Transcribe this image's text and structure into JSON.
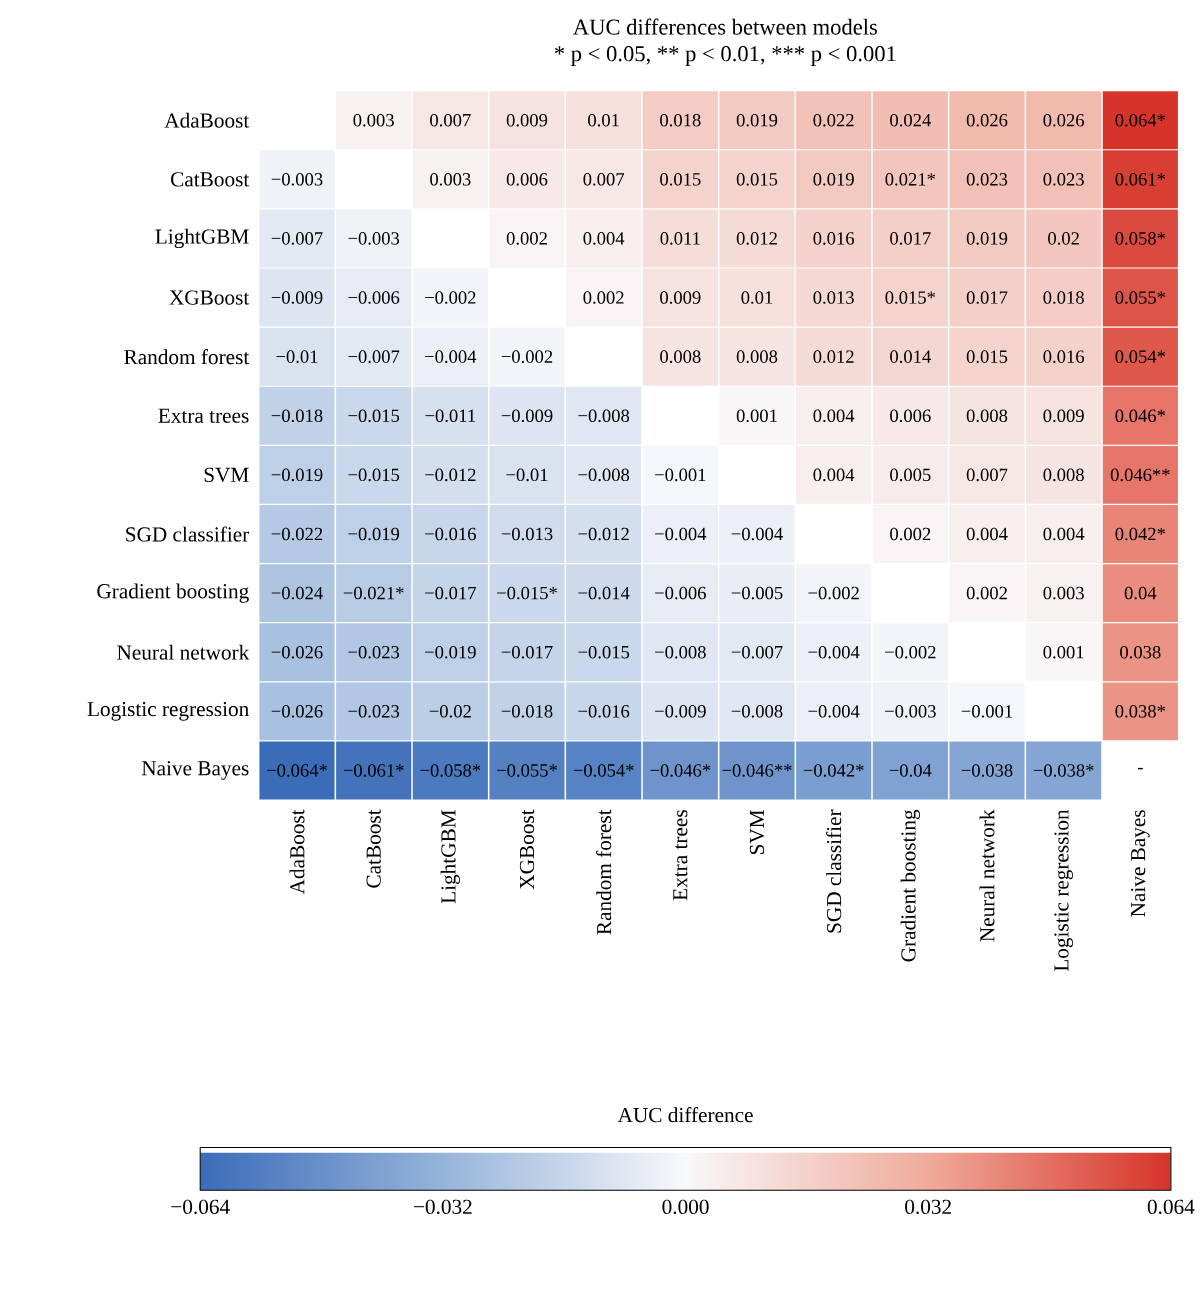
{
  "chart_data": {
    "type": "heatmap",
    "title": "AUC differences between models",
    "subtitle": "* p < 0.05, ** p < 0.01, *** p < 0.001",
    "clabel": "AUC difference",
    "categories": [
      "AdaBoost",
      "CatBoost",
      "LightGBM",
      "XGBoost",
      "Random forest",
      "Extra trees",
      "SVM",
      "SGD classifier",
      "Gradient boosting",
      "Neural network",
      "Logistic regression",
      "Naive Bayes"
    ],
    "y_categories": [
      "AdaBoost",
      "CatBoost",
      "LightGBM",
      "XGBoost",
      "Random forest",
      "Extra trees",
      "SVM",
      "SGD classifier",
      "Gradient boosting",
      "Neural network",
      "Logistic regression",
      "Naive Bayes"
    ],
    "cells": [
      [
        null,
        0.003,
        0.007,
        0.009,
        0.01,
        0.018,
        0.019,
        0.022,
        0.024,
        0.026,
        0.026,
        0.064
      ],
      [
        -0.003,
        null,
        0.003,
        0.006,
        0.007,
        0.015,
        0.015,
        0.019,
        0.021,
        0.023,
        0.023,
        0.061
      ],
      [
        -0.007,
        -0.003,
        null,
        0.002,
        0.004,
        0.011,
        0.012,
        0.016,
        0.017,
        0.019,
        0.02,
        0.058
      ],
      [
        -0.009,
        -0.006,
        -0.002,
        null,
        0.002,
        0.009,
        0.01,
        0.013,
        0.015,
        0.017,
        0.018,
        0.055
      ],
      [
        -0.01,
        -0.007,
        -0.004,
        -0.002,
        null,
        0.008,
        0.008,
        0.012,
        0.014,
        0.015,
        0.016,
        0.054
      ],
      [
        -0.018,
        -0.015,
        -0.011,
        -0.009,
        -0.008,
        null,
        0.001,
        0.004,
        0.006,
        0.008,
        0.009,
        0.046
      ],
      [
        -0.019,
        -0.015,
        -0.012,
        -0.01,
        -0.008,
        -0.001,
        null,
        0.004,
        0.005,
        0.007,
        0.008,
        0.046
      ],
      [
        -0.022,
        -0.019,
        -0.016,
        -0.013,
        -0.012,
        -0.004,
        -0.004,
        null,
        0.002,
        0.004,
        0.004,
        0.042
      ],
      [
        -0.024,
        -0.021,
        -0.017,
        -0.015,
        -0.014,
        -0.006,
        -0.005,
        -0.002,
        null,
        0.002,
        0.003,
        0.04
      ],
      [
        -0.026,
        -0.023,
        -0.019,
        -0.017,
        -0.015,
        -0.008,
        -0.007,
        -0.004,
        -0.002,
        null,
        0.001,
        0.038
      ],
      [
        -0.026,
        -0.023,
        -0.02,
        -0.018,
        -0.016,
        -0.009,
        -0.008,
        -0.004,
        -0.003,
        -0.001,
        null,
        0.038
      ],
      [
        -0.064,
        -0.061,
        -0.058,
        -0.055,
        -0.054,
        -0.046,
        -0.046,
        -0.042,
        -0.04,
        -0.038,
        -0.038,
        null
      ]
    ],
    "cell_labels": [
      [
        null,
        "0.003",
        "0.007",
        "0.009",
        "0.01",
        "0.018",
        "0.019",
        "0.022",
        "0.024",
        "0.026",
        "0.026",
        "0.064*"
      ],
      [
        "−0.003",
        null,
        "0.003",
        "0.006",
        "0.007",
        "0.015",
        "0.015",
        "0.019",
        "0.021*",
        "0.023",
        "0.023",
        "0.061*"
      ],
      [
        "−0.007",
        "−0.003",
        null,
        "0.002",
        "0.004",
        "0.011",
        "0.012",
        "0.016",
        "0.017",
        "0.019",
        "0.02",
        "0.058*"
      ],
      [
        "−0.009",
        "−0.006",
        "−0.002",
        null,
        "0.002",
        "0.009",
        "0.01",
        "0.013",
        "0.015*",
        "0.017",
        "0.018",
        "0.055*"
      ],
      [
        "−0.01",
        "−0.007",
        "−0.004",
        "−0.002",
        null,
        "0.008",
        "0.008",
        "0.012",
        "0.014",
        "0.015",
        "0.016",
        "0.054*"
      ],
      [
        "−0.018",
        "−0.015",
        "−0.011",
        "−0.009",
        "−0.008",
        null,
        "0.001",
        "0.004",
        "0.006",
        "0.008",
        "0.009",
        "0.046*"
      ],
      [
        "−0.019",
        "−0.015",
        "−0.012",
        "−0.01",
        "−0.008",
        "−0.001",
        null,
        "0.004",
        "0.005",
        "0.007",
        "0.008",
        "0.046**"
      ],
      [
        "−0.022",
        "−0.019",
        "−0.016",
        "−0.013",
        "−0.012",
        "−0.004",
        "−0.004",
        null,
        "0.002",
        "0.004",
        "0.004",
        "0.042*"
      ],
      [
        "−0.024",
        "−0.021*",
        "−0.017",
        "−0.015*",
        "−0.014",
        "−0.006",
        "−0.005",
        "−0.002",
        null,
        "0.002",
        "0.003",
        "0.04"
      ],
      [
        "−0.026",
        "−0.023",
        "−0.019",
        "−0.017",
        "−0.015",
        "−0.008",
        "−0.007",
        "−0.004",
        "−0.002",
        null,
        "0.001",
        "0.038"
      ],
      [
        "−0.026",
        "−0.023",
        "−0.02",
        "−0.018",
        "−0.016",
        "−0.009",
        "−0.008",
        "−0.004",
        "−0.003",
        "−0.001",
        null,
        "0.038*"
      ],
      [
        "−0.064*",
        "−0.061*",
        "−0.058*",
        "−0.055*",
        "−0.054*",
        "−0.046*",
        "−0.046**",
        "−0.042*",
        "−0.04",
        "−0.038",
        "−0.038*",
        "-"
      ]
    ],
    "clim": [
      -0.064,
      0.064
    ],
    "cticks": [
      {
        "value": -0.064,
        "label": "−0.064"
      },
      {
        "value": -0.032,
        "label": "−0.032"
      },
      {
        "value": 0,
        "label": "0.000"
      },
      {
        "value": 0.032,
        "label": "0.032"
      },
      {
        "value": 0.064,
        "label": "0.064"
      }
    ]
  }
}
